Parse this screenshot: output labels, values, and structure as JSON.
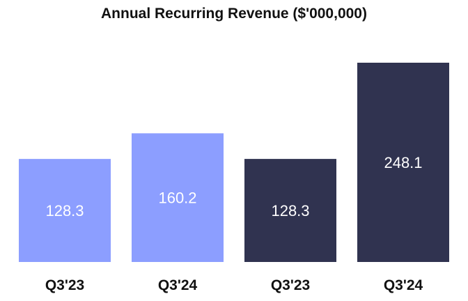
{
  "chart_data": {
    "type": "bar",
    "title": "Annual Recurring Revenue ($'000,000)",
    "xlabel": "",
    "ylabel": "",
    "ylim": [
      0,
      248.1
    ],
    "grid": false,
    "categories": [
      "Q3'23",
      "Q3'24",
      "Q3'23",
      "Q3'24"
    ],
    "values": [
      128.3,
      160.2,
      128.3,
      248.1
    ],
    "value_labels": [
      "128.3",
      "160.2",
      "128.3",
      "248.1"
    ],
    "colors": [
      "#8c9eff",
      "#8c9eff",
      "#303350",
      "#303350"
    ]
  }
}
